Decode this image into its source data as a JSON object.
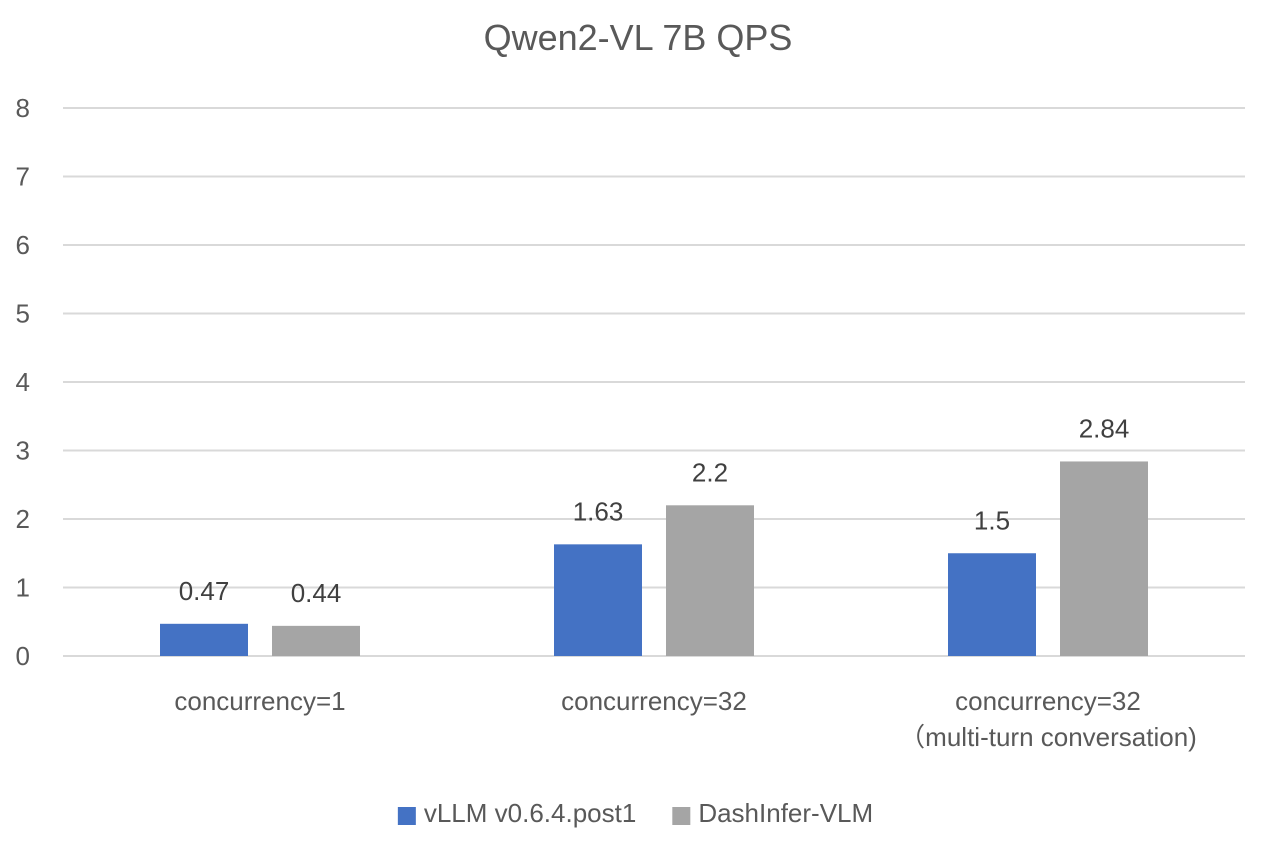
{
  "chart_data": {
    "type": "bar",
    "title": "Qwen2-VL 7B QPS",
    "xlabel": "",
    "ylabel": "",
    "ylim": [
      0,
      8
    ],
    "yticks": [
      0,
      1,
      2,
      3,
      4,
      5,
      6,
      7,
      8
    ],
    "grid": true,
    "legend_position": "bottom",
    "categories": [
      [
        "concurrency=1"
      ],
      [
        "concurrency=32"
      ],
      [
        "concurrency=32",
        "（multi-turn conversation)"
      ]
    ],
    "series": [
      {
        "name": "vLLM v0.6.4.post1",
        "color": "#4472C4",
        "values": [
          0.47,
          1.63,
          1.5
        ]
      },
      {
        "name": "DashInfer-VLM",
        "color": "#A5A5A5",
        "values": [
          0.44,
          2.2,
          2.84
        ]
      }
    ],
    "colors": {
      "grid": "#D9D9D9",
      "text": "#595959",
      "label": "#404040"
    }
  }
}
